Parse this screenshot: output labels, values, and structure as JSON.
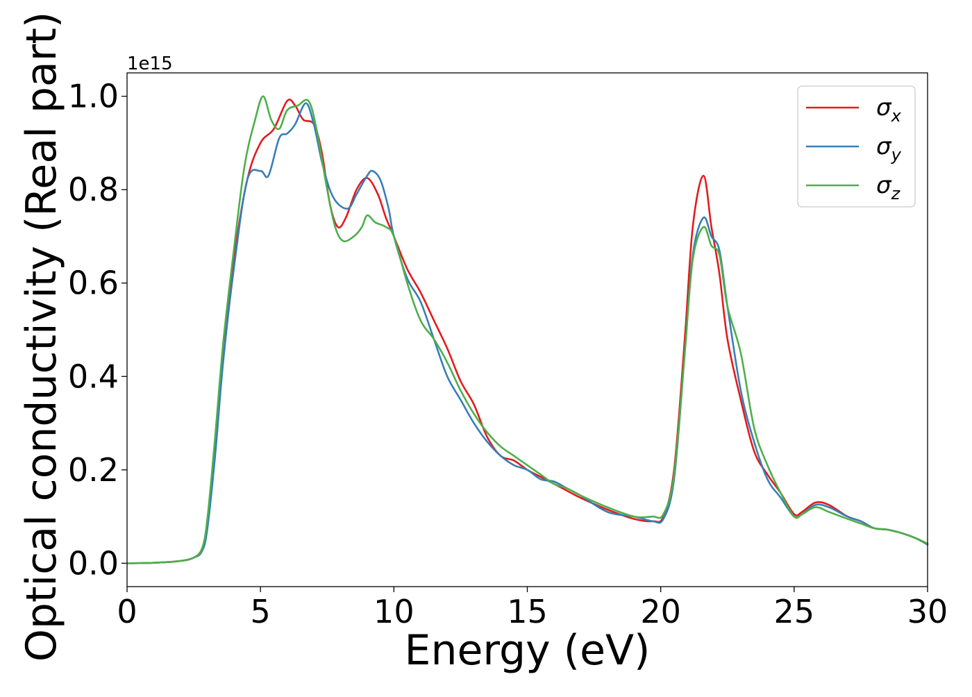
{
  "chart_data": {
    "type": "line",
    "title": "",
    "xlabel": "Energy (eV)",
    "ylabel": "Optical conductivity (Real part)",
    "y_offset_label": "1e15",
    "xlim": [
      0,
      30
    ],
    "ylim": [
      -0.05,
      1.05
    ],
    "x_ticks": [
      0,
      5,
      10,
      15,
      20,
      25,
      30
    ],
    "y_ticks": [
      0.0,
      0.2,
      0.4,
      0.6,
      0.8,
      1.0
    ],
    "x_tick_labels": [
      "0",
      "5",
      "10",
      "15",
      "20",
      "25",
      "30"
    ],
    "y_tick_labels": [
      "0.0",
      "0.2",
      "0.4",
      "0.6",
      "0.8",
      "1.0"
    ],
    "grid": false,
    "legend_position": "top-right",
    "series": [
      {
        "name": "σx",
        "legend_base": "σ",
        "legend_sub": "x",
        "color": "#e41a1c",
        "x": [
          0,
          1,
          2,
          2.5,
          2.8,
          3.0,
          3.3,
          3.6,
          4.0,
          4.5,
          5.0,
          5.5,
          6.0,
          6.3,
          6.6,
          7.0,
          7.3,
          7.6,
          7.9,
          8.2,
          8.6,
          9.0,
          9.4,
          9.7,
          10.0,
          10.5,
          11.0,
          11.5,
          12.0,
          12.5,
          13.0,
          13.5,
          14.0,
          14.5,
          15.0,
          15.5,
          16.0,
          16.5,
          17.0,
          18.0,
          19.0,
          19.7,
          20.1,
          20.5,
          20.9,
          21.2,
          21.6,
          21.9,
          22.2,
          22.5,
          23.0,
          23.5,
          24.0,
          24.5,
          25.0,
          25.3,
          25.8,
          26.3,
          27.0,
          27.5,
          28.0,
          28.5,
          29.0,
          29.5,
          30.0
        ],
        "values": [
          0.0,
          0.001,
          0.005,
          0.012,
          0.03,
          0.08,
          0.25,
          0.45,
          0.65,
          0.82,
          0.9,
          0.93,
          0.99,
          0.98,
          0.95,
          0.94,
          0.88,
          0.77,
          0.72,
          0.74,
          0.8,
          0.825,
          0.79,
          0.74,
          0.7,
          0.63,
          0.58,
          0.52,
          0.46,
          0.39,
          0.34,
          0.27,
          0.23,
          0.22,
          0.2,
          0.185,
          0.17,
          0.155,
          0.14,
          0.115,
          0.095,
          0.09,
          0.1,
          0.2,
          0.48,
          0.72,
          0.83,
          0.72,
          0.62,
          0.48,
          0.35,
          0.24,
          0.19,
          0.15,
          0.105,
          0.11,
          0.13,
          0.125,
          0.1,
          0.09,
          0.075,
          0.072,
          0.065,
          0.055,
          0.042
        ]
      },
      {
        "name": "σy",
        "legend_base": "σ",
        "legend_sub": "y",
        "color": "#377eb8",
        "x": [
          0,
          1,
          2,
          2.5,
          2.8,
          3.0,
          3.3,
          3.6,
          4.0,
          4.5,
          5.0,
          5.3,
          5.7,
          6.0,
          6.3,
          6.7,
          7.0,
          7.3,
          7.6,
          7.9,
          8.3,
          8.6,
          9.0,
          9.2,
          9.5,
          9.8,
          10.0,
          10.5,
          11.0,
          11.5,
          12.0,
          12.5,
          13.0,
          13.5,
          14.0,
          14.5,
          15.0,
          15.5,
          16.0,
          16.5,
          17.0,
          18.0,
          19.0,
          19.7,
          20.1,
          20.5,
          20.9,
          21.2,
          21.6,
          21.9,
          22.2,
          22.5,
          23.0,
          23.5,
          24.0,
          24.5,
          25.0,
          25.3,
          25.8,
          26.3,
          27.0,
          27.5,
          28.0,
          28.5,
          29.0,
          29.5,
          30.0
        ],
        "values": [
          0.0,
          0.001,
          0.005,
          0.012,
          0.025,
          0.07,
          0.23,
          0.43,
          0.63,
          0.82,
          0.84,
          0.83,
          0.91,
          0.92,
          0.94,
          0.985,
          0.94,
          0.86,
          0.8,
          0.77,
          0.76,
          0.79,
          0.83,
          0.84,
          0.82,
          0.76,
          0.7,
          0.61,
          0.56,
          0.48,
          0.4,
          0.35,
          0.3,
          0.26,
          0.23,
          0.21,
          0.2,
          0.18,
          0.175,
          0.16,
          0.145,
          0.11,
          0.1,
          0.09,
          0.095,
          0.18,
          0.45,
          0.66,
          0.74,
          0.7,
          0.67,
          0.55,
          0.37,
          0.26,
          0.18,
          0.14,
          0.1,
          0.105,
          0.125,
          0.12,
          0.1,
          0.09,
          0.075,
          0.072,
          0.065,
          0.055,
          0.04
        ]
      },
      {
        "name": "σz",
        "legend_base": "σ",
        "legend_sub": "z",
        "color": "#4daf4a",
        "x": [
          0,
          1,
          2,
          2.5,
          2.8,
          3.0,
          3.3,
          3.6,
          4.0,
          4.4,
          4.8,
          5.1,
          5.4,
          5.7,
          6.0,
          6.4,
          6.8,
          7.1,
          7.5,
          7.8,
          8.1,
          8.5,
          8.8,
          9.0,
          9.3,
          9.7,
          10.0,
          10.5,
          11.0,
          11.5,
          12.0,
          12.5,
          13.0,
          13.5,
          14.0,
          14.5,
          15.0,
          15.5,
          16.0,
          16.5,
          17.0,
          18.0,
          19.0,
          19.7,
          20.1,
          20.5,
          20.9,
          21.2,
          21.6,
          21.9,
          22.2,
          22.5,
          23.0,
          23.5,
          24.0,
          24.5,
          25.0,
          25.3,
          25.8,
          26.3,
          27.0,
          27.5,
          28.0,
          28.5,
          29.0,
          29.5,
          30.0
        ],
        "values": [
          0.0,
          0.001,
          0.005,
          0.012,
          0.03,
          0.09,
          0.27,
          0.47,
          0.67,
          0.85,
          0.95,
          1.0,
          0.95,
          0.93,
          0.97,
          0.98,
          0.99,
          0.93,
          0.8,
          0.72,
          0.69,
          0.7,
          0.72,
          0.745,
          0.73,
          0.72,
          0.7,
          0.6,
          0.52,
          0.48,
          0.43,
          0.37,
          0.32,
          0.28,
          0.25,
          0.23,
          0.21,
          0.19,
          0.17,
          0.16,
          0.145,
          0.12,
          0.1,
          0.1,
          0.105,
          0.19,
          0.45,
          0.65,
          0.72,
          0.68,
          0.66,
          0.55,
          0.45,
          0.29,
          0.21,
          0.15,
          0.1,
          0.105,
          0.12,
          0.11,
          0.095,
          0.085,
          0.075,
          0.072,
          0.065,
          0.055,
          0.042
        ]
      }
    ]
  }
}
